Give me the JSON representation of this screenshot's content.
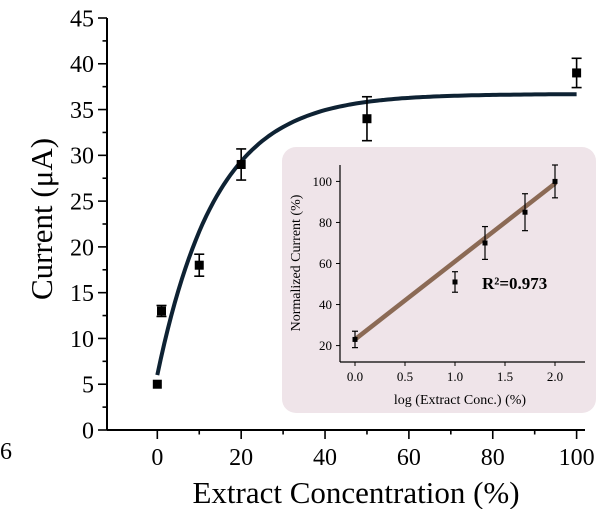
{
  "chart_data": [
    {
      "type": "scatter",
      "xlabel": "Extract Concentration (%)",
      "ylabel": "Current (μA)",
      "xlim": [
        -12,
        102
      ],
      "ylim": [
        0,
        45
      ],
      "x_ticks": [
        0,
        20,
        40,
        60,
        80,
        100
      ],
      "y_ticks": [
        0,
        5,
        10,
        15,
        20,
        25,
        30,
        35,
        40,
        45
      ],
      "left_edge_label": "6",
      "grid": false,
      "series": [
        {
          "kind": "points",
          "marker": "square",
          "color": "#000000",
          "x": [
            0,
            1,
            10,
            20,
            50,
            100
          ],
          "y": [
            5,
            13,
            18,
            29,
            34,
            39
          ],
          "error": [
            0,
            0.6,
            1.2,
            1.7,
            2.4,
            1.6
          ]
        },
        {
          "kind": "fit",
          "color": "#0e2233",
          "model": "y = a - b*exp(-x/t)",
          "params": {
            "a": 36.7,
            "b": 30.7,
            "t": 14
          },
          "x_range": [
            0,
            100
          ]
        }
      ]
    },
    {
      "type": "scatter",
      "xlabel": "log (Extract Conc.) (%)",
      "ylabel": "Normalized Current (%)",
      "xlim": [
        -0.15,
        2.3
      ],
      "ylim": [
        12,
        108
      ],
      "x_ticks": [
        0.0,
        0.5,
        1.0,
        1.5,
        2.0
      ],
      "y_ticks": [
        20,
        40,
        60,
        80,
        100
      ],
      "annotation": "R²=0.973",
      "background": "#efe4e9",
      "series": [
        {
          "kind": "points",
          "marker": "square",
          "color": "#000000",
          "x": [
            0.0,
            1.0,
            1.3,
            1.7,
            2.0
          ],
          "y": [
            23,
            51,
            70,
            85,
            100
          ],
          "error": [
            4,
            5,
            8,
            9,
            8
          ]
        },
        {
          "kind": "fit",
          "color": "#8b6a55",
          "model": "linear",
          "x": [
            0.0,
            2.0
          ],
          "y": [
            23,
            99
          ]
        }
      ]
    }
  ]
}
